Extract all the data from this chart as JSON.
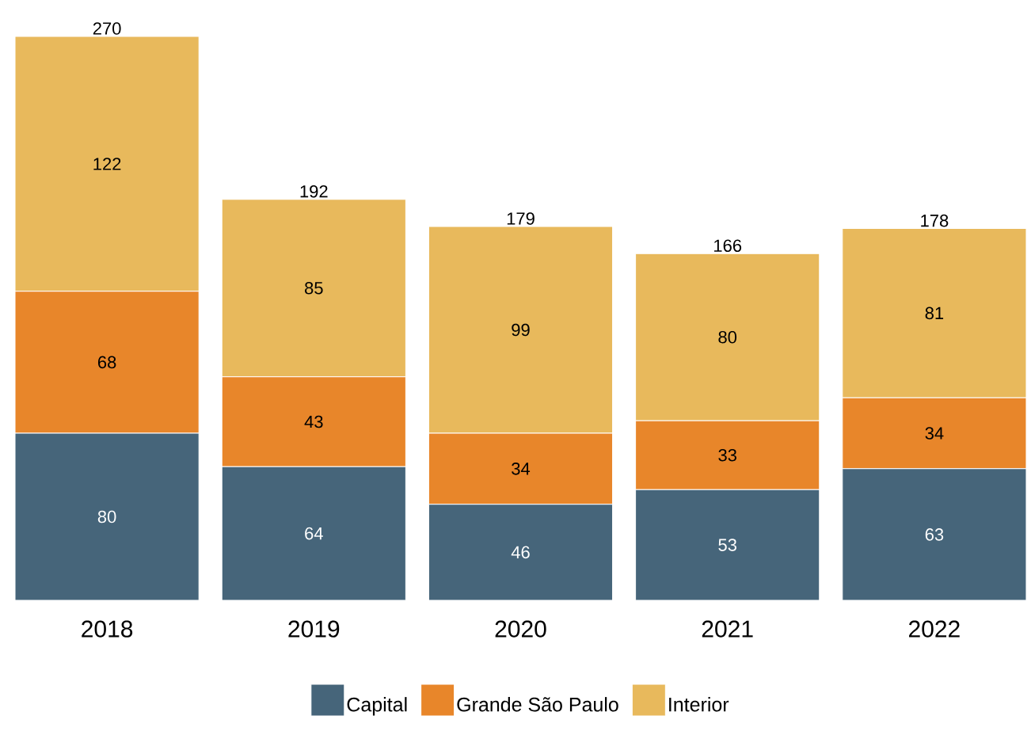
{
  "chart_data": {
    "type": "bar",
    "stacked": true,
    "data_labels": true,
    "legend": "bottom",
    "categories": [
      "2018",
      "2019",
      "2020",
      "2021",
      "2022"
    ],
    "series": [
      {
        "name": "Capital",
        "color": "#46657a",
        "values": [
          80,
          64,
          46,
          53,
          63
        ]
      },
      {
        "name": "Grande São Paulo",
        "color": "#e8862a",
        "values": [
          68,
          43,
          34,
          33,
          34
        ]
      },
      {
        "name": "Interior",
        "color": "#e8b95c",
        "values": [
          122,
          85,
          99,
          80,
          81
        ]
      }
    ],
    "totals": [
      "270",
      "192",
      "179",
      "166",
      "178"
    ]
  }
}
